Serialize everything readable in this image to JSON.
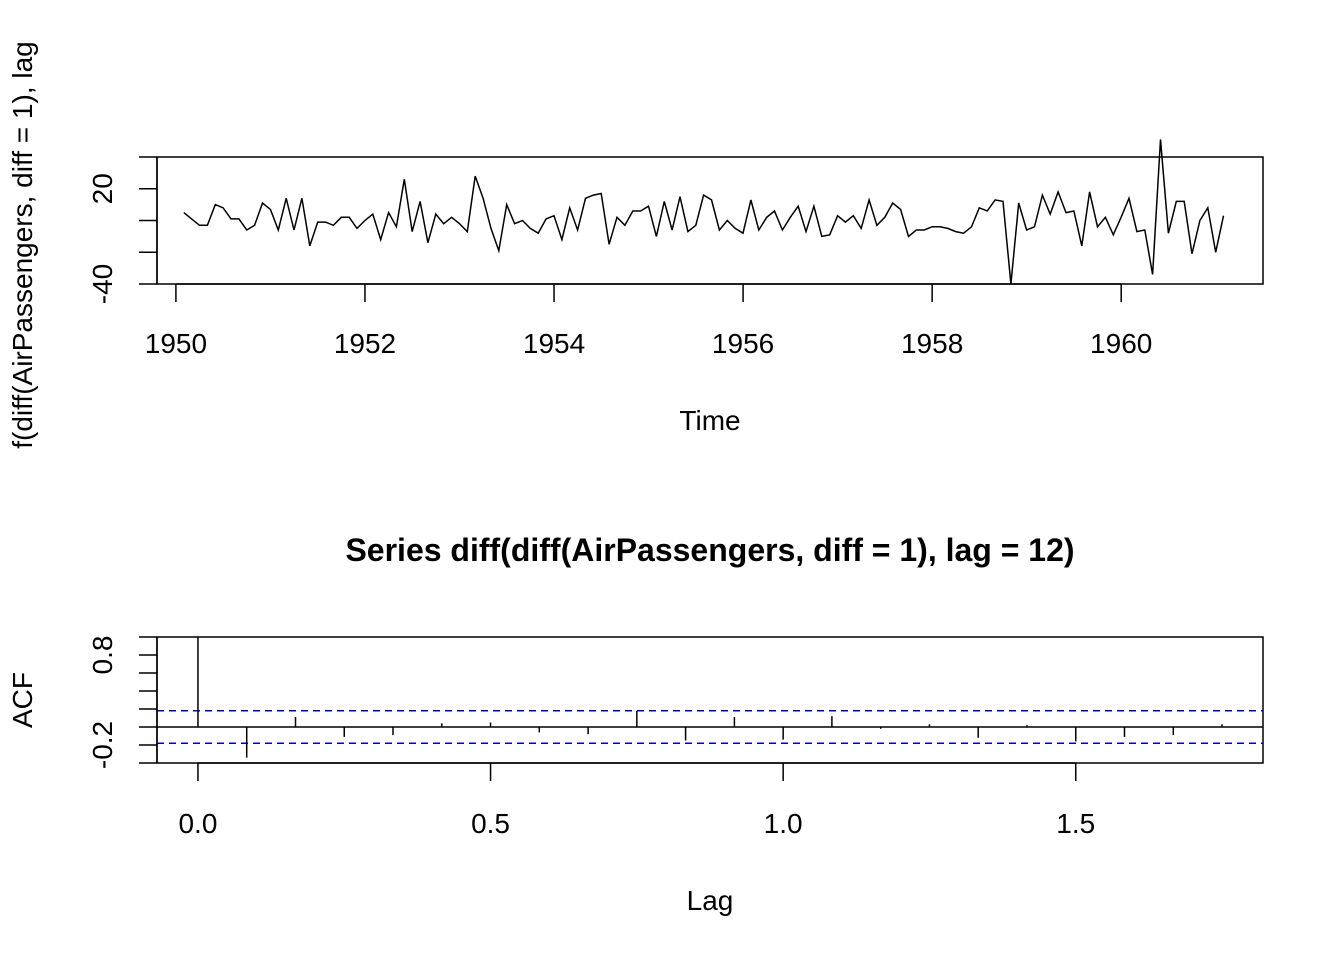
{
  "chart_data": [
    {
      "type": "line",
      "title": "",
      "xlabel": "Time",
      "ylabel": "f(diff(AirPassengers, diff = 1), lag",
      "xlim": [
        1949.8,
        1961.5
      ],
      "ylim": [
        -40,
        40
      ],
      "x_ticks": [
        1950,
        1952,
        1954,
        1956,
        1958,
        1960
      ],
      "x_tick_labels": [
        "1950",
        "1952",
        "1954",
        "1956",
        "1958",
        "1960"
      ],
      "y_ticks": [
        -40,
        -20,
        0,
        20,
        40
      ],
      "y_tick_labels": [
        "-40",
        "",
        "",
        "20",
        ""
      ],
      "x_start": 1950.083,
      "x_step": 0.08333,
      "series": [
        {
          "values": [
            5,
            1,
            -3,
            -3,
            10,
            8,
            1,
            1,
            -6,
            -3,
            11,
            7,
            -6,
            14,
            -6,
            14,
            -16,
            -1,
            -1,
            -3,
            2,
            2,
            -5,
            0,
            4,
            -12,
            5,
            -4,
            26,
            -7,
            12,
            -14,
            4,
            -2,
            2,
            -2,
            -7,
            28,
            14,
            -5,
            -19,
            10,
            -2,
            0,
            -5,
            -8,
            1,
            3,
            -12,
            8,
            -6,
            14,
            16,
            17,
            -15,
            2,
            -3,
            6,
            6,
            9,
            -10,
            12,
            -6,
            15,
            -7,
            -3,
            16,
            13,
            -6,
            0,
            -5,
            -8,
            13,
            -6,
            2,
            6,
            -6,
            2,
            9,
            -7,
            9,
            -10,
            -9,
            3,
            -1,
            3,
            -5,
            13,
            -3,
            2,
            11,
            7,
            -10,
            -6,
            -6,
            -4,
            -4,
            -5,
            -7,
            -8,
            -4,
            8,
            6,
            13,
            12,
            -40,
            11,
            -6,
            -4,
            16,
            4,
            18,
            5,
            6,
            -16,
            18,
            -4,
            2,
            -9,
            2,
            14,
            -7,
            -6,
            -34,
            51,
            -8,
            12,
            12,
            -21,
            0,
            8,
            -20,
            3
          ]
        }
      ]
    },
    {
      "type": "bar",
      "title": "Series  diff(diff(AirPassengers, diff = 1), lag = 12)",
      "xlabel": "Lag",
      "ylabel": "ACF",
      "xlim": [
        -0.07,
        1.82
      ],
      "ylim": [
        -0.4,
        1.0
      ],
      "x_ticks": [
        0.0,
        0.5,
        1.0,
        1.5
      ],
      "x_tick_labels": [
        "0.0",
        "0.5",
        "1.0",
        "1.5"
      ],
      "y_ticks": [
        -0.4,
        -0.2,
        0.0,
        0.2,
        0.4,
        0.6,
        0.8,
        1.0
      ],
      "y_tick_labels": [
        "",
        "-0.2",
        "",
        "",
        "",
        "",
        "0.8",
        ""
      ],
      "lags": [
        0,
        0.0833,
        0.1667,
        0.25,
        0.3333,
        0.4167,
        0.5,
        0.5833,
        0.6667,
        0.75,
        0.8333,
        0.9167,
        1.0,
        1.0833,
        1.1667,
        1.25,
        1.3333,
        1.4167,
        1.5,
        1.5833,
        1.6667,
        1.75
      ],
      "values": [
        1.0,
        -0.34,
        0.11,
        -0.11,
        -0.09,
        0.04,
        0.05,
        -0.06,
        -0.08,
        0.18,
        -0.15,
        0.11,
        -0.14,
        0.12,
        -0.02,
        0.03,
        -0.12,
        0.02,
        -0.16,
        -0.11,
        -0.09,
        0.03
      ],
      "confidence_bound": 0.18,
      "ci_color": "#0000cc"
    }
  ]
}
